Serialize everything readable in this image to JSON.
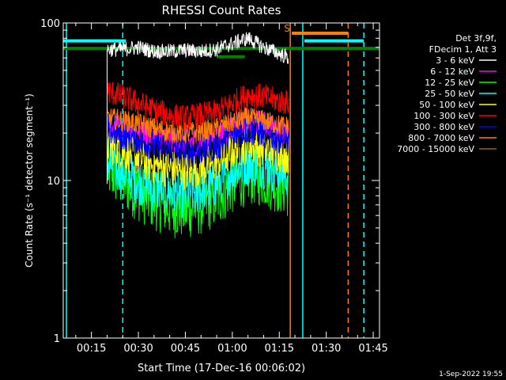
{
  "chart_data": {
    "type": "line",
    "title": "RHESSI Count Rates",
    "xlabel": "Start Time (17-Dec-16 00:06:02)",
    "ylabel": "Count Rate (s⁻¹ detector segment⁻¹)",
    "yscale": "log",
    "ylim": [
      1,
      100
    ],
    "xlim_minutes": [
      6,
      107
    ],
    "x_ticks": [
      {
        "minutes": 15,
        "label": "00:15"
      },
      {
        "minutes": 30,
        "label": "00:30"
      },
      {
        "minutes": 45,
        "label": "00:45"
      },
      {
        "minutes": 60,
        "label": "01:00"
      },
      {
        "minutes": 75,
        "label": "01:15"
      },
      {
        "minutes": 90,
        "label": "01:30"
      },
      {
        "minutes": 105,
        "label": "01:45"
      }
    ],
    "y_ticks": [
      {
        "value": 1,
        "label": "1"
      },
      {
        "value": 10,
        "label": "10"
      },
      {
        "value": 100,
        "label": "100"
      }
    ],
    "legend": {
      "header": [
        "Det 3f,9f,",
        "FDecim 1, Att 3"
      ],
      "placement": "right"
    },
    "series": [
      {
        "name": "3 - 6 keV",
        "color": "#ffffff",
        "x": [
          20,
          25,
          30,
          35,
          40,
          45,
          50,
          55,
          60,
          65,
          70,
          75,
          78
        ],
        "y": [
          68,
          68,
          70,
          66,
          66,
          67,
          66,
          68,
          74,
          80,
          70,
          64,
          60
        ]
      },
      {
        "name": "6 - 12 keV",
        "color": "#ff00ff",
        "x": [
          20,
          25,
          30,
          35,
          40,
          45,
          50,
          55,
          60,
          65,
          70,
          75,
          78
        ],
        "y": [
          23,
          22,
          21,
          19,
          18,
          17.5,
          18,
          19,
          22,
          24,
          23,
          21,
          20
        ]
      },
      {
        "name": "12 - 25 keV",
        "color": "#00ff00",
        "x": [
          20,
          25,
          30,
          35,
          40,
          45,
          50,
          55,
          60,
          65,
          70,
          75,
          78
        ],
        "y": [
          12,
          10,
          8.5,
          7.5,
          6.8,
          6.5,
          7,
          7.8,
          9.5,
          11,
          10.5,
          9.5,
          9
        ]
      },
      {
        "name": "25 - 50 keV",
        "color": "#00ffff",
        "x": [
          20,
          25,
          30,
          35,
          40,
          45,
          50,
          55,
          60,
          65,
          70,
          75,
          78
        ],
        "y": [
          13,
          11.5,
          10,
          9,
          8.5,
          8.2,
          8.8,
          9.5,
          11.5,
          13,
          12.5,
          11.5,
          11
        ]
      },
      {
        "name": "50 - 100 keV",
        "color": "#ffff00",
        "x": [
          20,
          25,
          30,
          35,
          40,
          45,
          50,
          55,
          60,
          65,
          70,
          75,
          78
        ],
        "y": [
          17,
          15.5,
          14,
          12.5,
          12,
          11.5,
          12,
          13,
          15.5,
          17,
          16,
          15,
          14.5
        ]
      },
      {
        "name": "100 - 300 keV",
        "color": "#ff0000",
        "x": [
          20,
          25,
          30,
          35,
          40,
          45,
          50,
          55,
          60,
          65,
          70,
          75,
          78
        ],
        "y": [
          37,
          34,
          31,
          28,
          26,
          25,
          26,
          27,
          31,
          35,
          34,
          32,
          31
        ]
      },
      {
        "name": "300 - 800 keV",
        "color": "#0000ff",
        "x": [
          20,
          25,
          30,
          35,
          40,
          45,
          50,
          55,
          60,
          65,
          70,
          75,
          78
        ],
        "y": [
          21,
          19.5,
          18,
          16.5,
          15.5,
          15,
          15.5,
          16.5,
          19.5,
          21,
          20,
          18.5,
          18
        ]
      },
      {
        "name": "800 - 7000 keV",
        "color": "#ff8000",
        "x": [
          20,
          25,
          30,
          35,
          40,
          45,
          50,
          55,
          60,
          65,
          70,
          75,
          78
        ],
        "y": [
          25,
          24,
          23,
          21.5,
          20.5,
          20,
          20.5,
          21.5,
          23.5,
          25,
          24,
          22.5,
          22
        ]
      },
      {
        "name": "7000 - 15000 keV",
        "color": "#a06000",
        "x": [],
        "y": []
      }
    ],
    "markers": {
      "vertical": [
        {
          "x": 7,
          "color": "#00ffff",
          "style": "solid"
        },
        {
          "x": 25,
          "color": "#00ffff",
          "style": "dashed"
        },
        {
          "x": 78.5,
          "color": "#ff8000",
          "style": "solid"
        },
        {
          "x": 82.5,
          "color": "#00ffff",
          "style": "solid"
        },
        {
          "x": 97,
          "color": "#ff8000",
          "style": "dashed"
        },
        {
          "x": 102,
          "color": "#00ffff",
          "style": "dashed"
        }
      ],
      "horizontal": [
        {
          "x0": 6,
          "x1": 26,
          "y": 77,
          "color": "#00ffff"
        },
        {
          "x0": 83,
          "x1": 102,
          "y": 77,
          "color": "#00ffff"
        },
        {
          "x0": 79,
          "x1": 97,
          "y": 86,
          "color": "#ff8000"
        },
        {
          "x0": 6,
          "x1": 107,
          "y": 69,
          "color": "#008000"
        },
        {
          "x0": 55,
          "x1": 64,
          "y": 61,
          "color": "#008000"
        }
      ],
      "labels": [
        {
          "x": 76.5,
          "y": 88,
          "text": "S",
          "color": "#ff8000"
        }
      ]
    }
  },
  "footer": {
    "timestamp": "1-Sep-2022 19:55"
  }
}
